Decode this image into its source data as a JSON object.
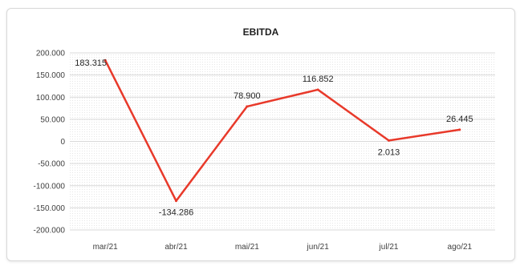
{
  "chart_data": {
    "type": "line",
    "title": "EBITDA",
    "xlabel": "",
    "ylabel": "",
    "categories": [
      "mar/21",
      "abr/21",
      "mai/21",
      "jun/21",
      "jul/21",
      "ago/21"
    ],
    "series": [
      {
        "values": [
          183315,
          -134286,
          78900,
          116852,
          2013,
          26445
        ],
        "data_labels": [
          "183.315",
          "-134.286",
          "78.900",
          "116.852",
          "2.013",
          "26.445"
        ],
        "color": "#e8392a"
      }
    ],
    "ylim": [
      -200000,
      200000
    ],
    "y_ticks": [
      200000,
      150000,
      100000,
      50000,
      0,
      -50000,
      -100000,
      -150000,
      -200000
    ],
    "y_tick_labels": [
      "200.000",
      "150.000",
      "100.000",
      "50.000",
      "0",
      "-50.000",
      "-100.000",
      "-150.000",
      "-200.000"
    ],
    "grid": true,
    "legend": "none"
  }
}
